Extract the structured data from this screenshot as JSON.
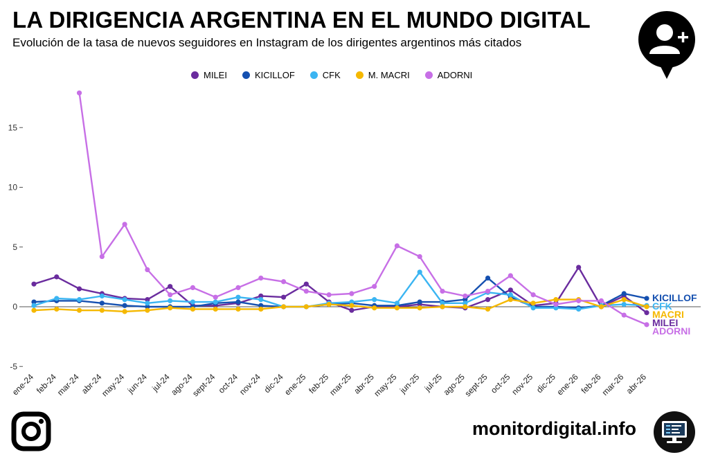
{
  "header": {
    "title": "LA DIRIGENCIA ARGENTINA EN EL MUNDO DIGITAL",
    "subtitle": "Evolución de la tasa de nuevos seguidores en Instagram de los dirigentes argentinos más citados"
  },
  "footer": {
    "site": "monitordigital.info"
  },
  "icons": {
    "badge": "add-user-icon",
    "instagram": "instagram-icon",
    "monitor": "monitor-icon"
  },
  "chart_data": {
    "type": "line",
    "title": "",
    "xlabel": "",
    "ylabel": "",
    "ylim": [
      -5,
      18
    ],
    "yticks": [
      -5,
      0,
      5,
      10,
      15
    ],
    "grid": false,
    "legend_position": "top",
    "categories": [
      "ene-24",
      "feb-24",
      "mar-24",
      "abr-24",
      "may-24",
      "jun-24",
      "jul-24",
      "ago-24",
      "sept-24",
      "oct-24",
      "nov-24",
      "dic-24",
      "ene-25",
      "feb-25",
      "mar-25",
      "abr-25",
      "may-25",
      "jun-25",
      "jul-25",
      "ago-25",
      "sept-25",
      "oct-25",
      "nov-25",
      "dic-25",
      "ene-26",
      "feb-26",
      "mar-26",
      "abr-26"
    ],
    "series": [
      {
        "name": "MILEI",
        "color": "#6a2c9e",
        "end_label": "MILEI",
        "values": [
          1.9,
          2.5,
          1.5,
          1.1,
          0.7,
          0.6,
          1.7,
          0.1,
          0.1,
          0.3,
          0.9,
          0.8,
          1.9,
          0.4,
          -0.3,
          0.0,
          0.0,
          0.2,
          0.0,
          -0.1,
          0.6,
          1.4,
          0.1,
          0.3,
          3.3,
          0.0,
          0.9,
          -0.5
        ]
      },
      {
        "name": "KICILLOF",
        "color": "#1550b0",
        "end_label": "KICILLOF",
        "values": [
          0.4,
          0.5,
          0.5,
          0.3,
          0.1,
          0.0,
          0.0,
          0.0,
          0.3,
          0.4,
          0.1,
          0.0,
          0.0,
          0.2,
          0.3,
          0.1,
          0.1,
          0.4,
          0.4,
          0.6,
          2.4,
          0.8,
          0.0,
          0.0,
          -0.1,
          0.1,
          1.1,
          0.7
        ]
      },
      {
        "name": "CFK",
        "color": "#3bb5f2",
        "end_label": "CFK",
        "values": [
          0.1,
          0.7,
          0.6,
          0.9,
          0.6,
          0.3,
          0.5,
          0.4,
          0.4,
          0.8,
          0.6,
          0.0,
          0.0,
          0.3,
          0.4,
          0.6,
          0.3,
          2.9,
          0.3,
          0.3,
          1.2,
          1.0,
          -0.1,
          -0.1,
          -0.2,
          0.1,
          0.2,
          0.1
        ]
      },
      {
        "name": "M. MACRI",
        "color": "#f5b800",
        "end_label": "MACRI",
        "values": [
          -0.3,
          -0.2,
          -0.3,
          -0.3,
          -0.4,
          -0.3,
          -0.1,
          -0.2,
          -0.2,
          -0.2,
          -0.2,
          0.0,
          0.0,
          0.2,
          0.1,
          -0.1,
          -0.1,
          -0.1,
          0.0,
          0.0,
          -0.2,
          0.6,
          0.3,
          0.6,
          0.6,
          0.0,
          0.6,
          0.0
        ]
      },
      {
        "name": "ADORNI",
        "color": "#c76fe6",
        "end_label": "ADORNI",
        "values": [
          null,
          null,
          17.9,
          4.2,
          6.9,
          3.1,
          1.0,
          1.6,
          0.8,
          1.6,
          2.4,
          2.1,
          1.3,
          1.0,
          1.1,
          1.7,
          5.1,
          4.2,
          1.3,
          0.9,
          1.3,
          2.6,
          1.0,
          0.2,
          0.5,
          0.5,
          -0.7,
          -1.5
        ]
      }
    ]
  }
}
